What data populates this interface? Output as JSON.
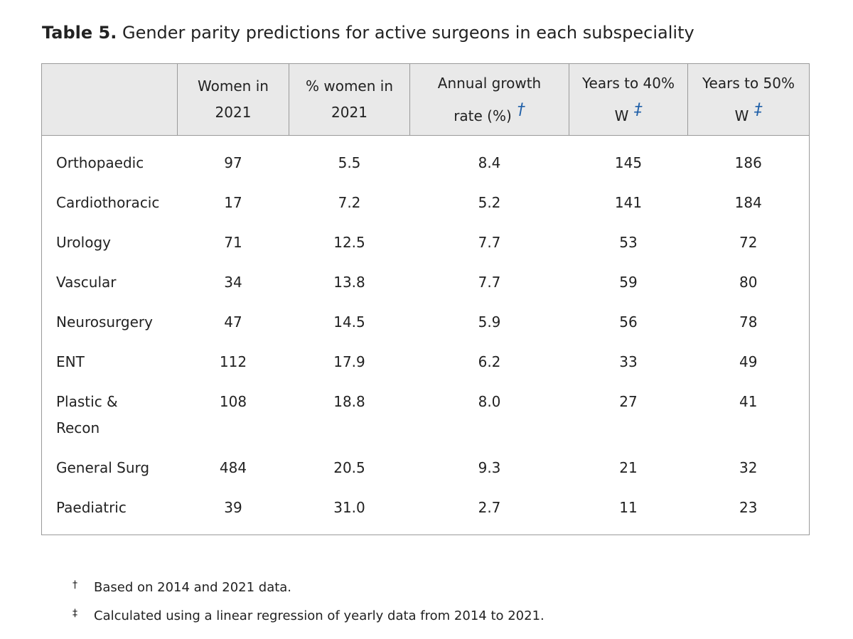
{
  "caption": {
    "label": "Table 5.",
    "text": "Gender parity predictions for active surgeons in each subspeciality"
  },
  "table": {
    "headers": [
      {
        "line1": "",
        "line2": "",
        "symbol": ""
      },
      {
        "line1": "Women in",
        "line2": "2021",
        "symbol": ""
      },
      {
        "line1": "% women in",
        "line2": "2021",
        "symbol": ""
      },
      {
        "line1": "Annual growth",
        "line2": "rate (%)",
        "symbol": "†"
      },
      {
        "line1": "Years to 40%",
        "line2": "W",
        "symbol": "‡"
      },
      {
        "line1": "Years to 50%",
        "line2": "W",
        "symbol": "‡"
      }
    ],
    "rows": [
      [
        "Orthopaedic",
        "97",
        "5.5",
        "8.4",
        "145",
        "186"
      ],
      [
        "Cardiothoracic",
        "17",
        "7.2",
        "5.2",
        "141",
        "184"
      ],
      [
        "Urology",
        "71",
        "12.5",
        "7.7",
        "53",
        "72"
      ],
      [
        "Vascular",
        "34",
        "13.8",
        "7.7",
        "59",
        "80"
      ],
      [
        "Neurosurgery",
        "47",
        "14.5",
        "5.9",
        "56",
        "78"
      ],
      [
        "ENT",
        "112",
        "17.9",
        "6.2",
        "33",
        "49"
      ],
      [
        "Plastic & Recon",
        "108",
        "18.8",
        "8.0",
        "27",
        "41"
      ],
      [
        "General Surg",
        "484",
        "20.5",
        "9.3",
        "21",
        "32"
      ],
      [
        "Paediatric",
        "39",
        "31.0",
        "2.7",
        "11",
        "23"
      ]
    ]
  },
  "footnotes": [
    {
      "mark": "†",
      "text": "Based on 2014 and 2021 data."
    },
    {
      "mark": "‡",
      "text": "Calculated using a linear regression of yearly data from 2014 to 2021."
    }
  ],
  "colors": {
    "symbol": "#1f5fa8",
    "header_bg": "#e9e9e9",
    "border": "#9a9a9a"
  }
}
